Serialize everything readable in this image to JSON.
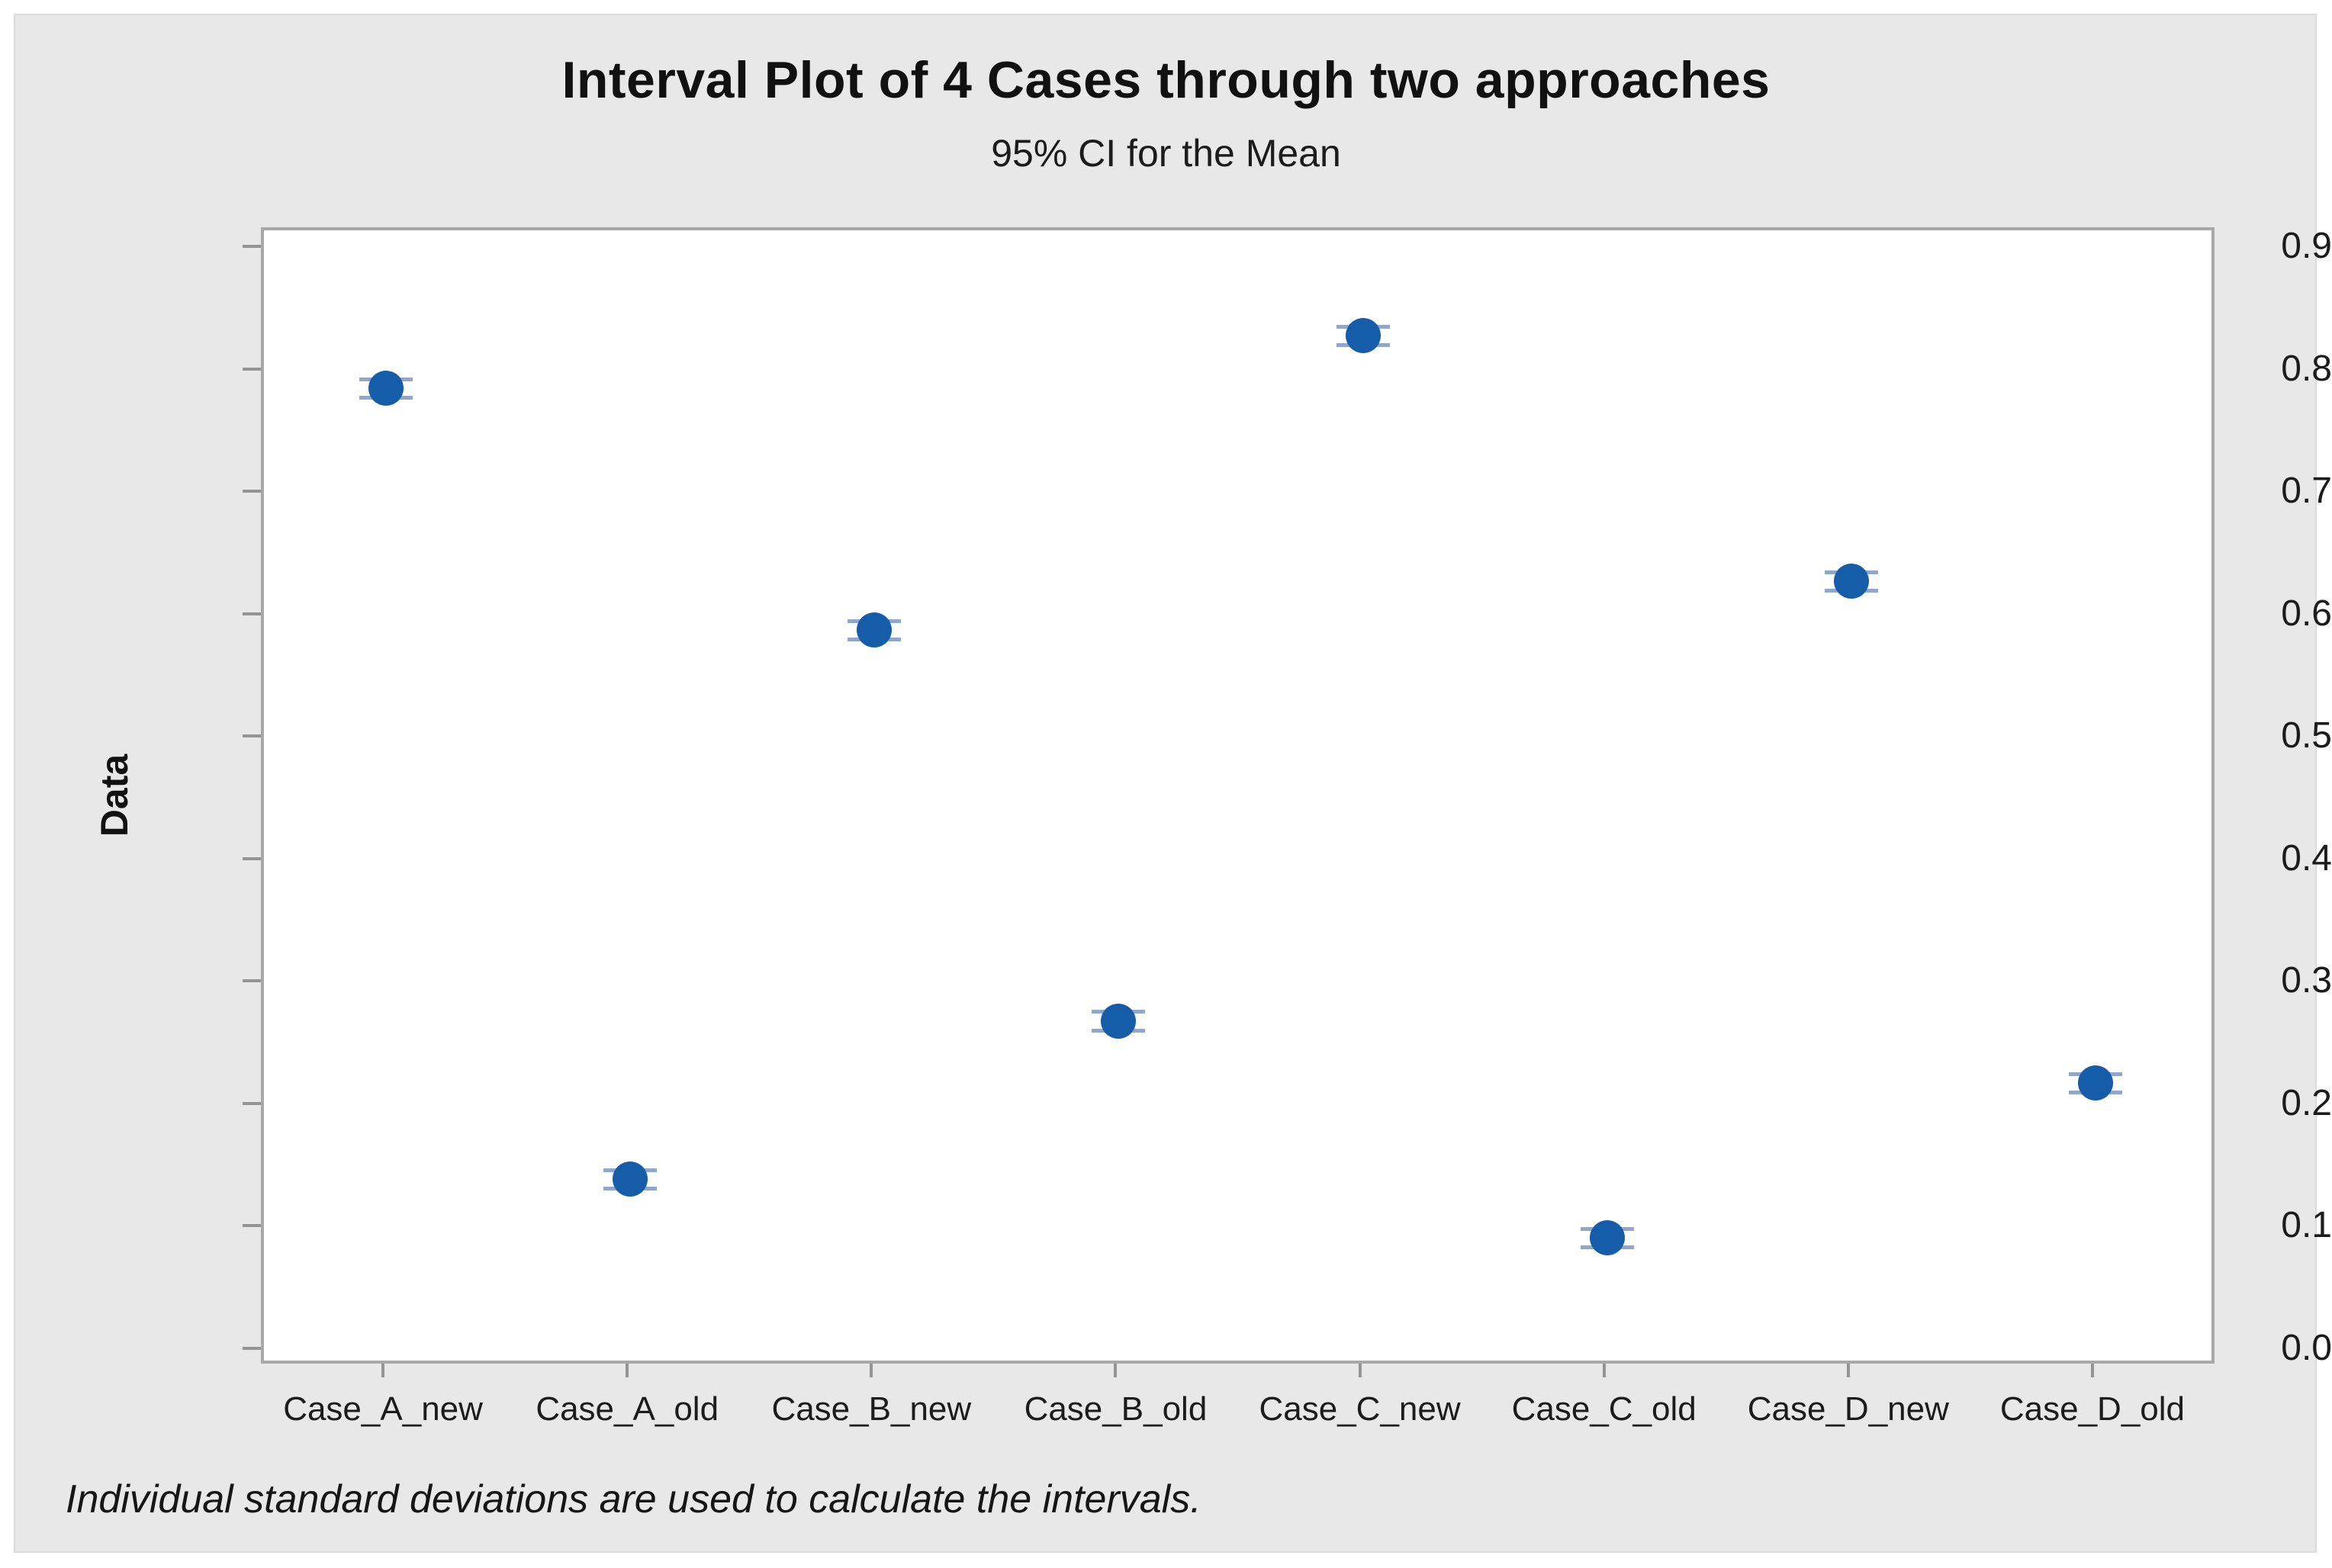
{
  "colors": {
    "panel_background": "#e8e8e8",
    "plot_background": "#ffffff",
    "frame": "#a8a8a8",
    "tick": "#949494",
    "text": "#1c1c1c",
    "point": "#155da9",
    "interval": "#8fa7cd"
  },
  "chart_data": {
    "type": "scatter",
    "chart_kind": "interval_plot",
    "title": "Interval Plot of 4 Cases through two approaches",
    "subtitle": "95% CI for the Mean",
    "ylabel": "Data",
    "xlabel": "",
    "categories": [
      "Case_A_new",
      "Case_A_old",
      "Case_B_new",
      "Case_B_old",
      "Case_C_new",
      "Case_C_old",
      "Case_D_new",
      "Case_D_old"
    ],
    "series": [
      {
        "name": "Mean",
        "values": [
          0.787,
          0.141,
          0.589,
          0.27,
          0.83,
          0.093,
          0.629,
          0.219
        ]
      }
    ],
    "ci_halfwidth": 0.0075,
    "yticks": [
      0.0,
      0.1,
      0.2,
      0.3,
      0.4,
      0.5,
      0.6,
      0.7,
      0.8,
      0.9
    ],
    "ytick_labels": [
      "0.0",
      "0.1",
      "0.2",
      "0.3",
      "0.4",
      "0.5",
      "0.6",
      "0.7",
      "0.8",
      "0.9"
    ],
    "ylim": [
      -0.0125,
      0.9157
    ],
    "grid": false,
    "legend": "none",
    "footnote": "Individual standard deviations are used to calculate the intervals."
  }
}
